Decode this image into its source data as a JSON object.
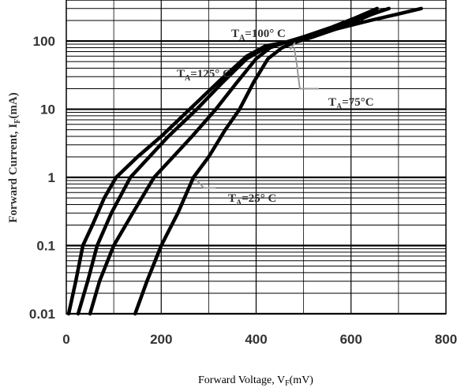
{
  "chart_data": {
    "type": "line",
    "title": "",
    "xlabel": {
      "main": "Forward Voltage, V",
      "sub": "F",
      "unit": "(mV)"
    },
    "ylabel": {
      "main": "Forward Current, I",
      "sub": "F",
      "unit": "(mA)"
    },
    "xlim": [
      0,
      800
    ],
    "ylim": [
      0.01,
      400
    ],
    "yscale": "log",
    "grid": true,
    "x_ticks": [
      0,
      200,
      400,
      600,
      800
    ],
    "x_tick_labels": [
      "0",
      "200",
      "400",
      "600",
      "800"
    ],
    "y_ticks": [
      0.01,
      0.1,
      1,
      10,
      100
    ],
    "y_tick_labels": [
      "0.01",
      "0.1",
      "1",
      "10",
      "100"
    ],
    "series": [
      {
        "points": [
          [
            5,
            0.01
          ],
          [
            20,
            0.03
          ],
          [
            35,
            0.1
          ],
          [
            55,
            0.2
          ],
          [
            80,
            0.5
          ],
          [
            105,
            1
          ],
          [
            150,
            2
          ],
          [
            200,
            4
          ],
          [
            260,
            10
          ],
          [
            320,
            25
          ],
          [
            380,
            60
          ],
          [
            420,
            85
          ],
          [
            460,
            95
          ],
          [
            500,
            115
          ],
          [
            560,
            160
          ],
          [
            610,
            220
          ],
          [
            655,
            300
          ]
        ]
      },
      {
        "points": [
          [
            25,
            0.01
          ],
          [
            45,
            0.03
          ],
          [
            65,
            0.1
          ],
          [
            95,
            0.3
          ],
          [
            135,
            1
          ],
          [
            175,
            2
          ],
          [
            215,
            4
          ],
          [
            275,
            10
          ],
          [
            330,
            25
          ],
          [
            380,
            55
          ],
          [
            420,
            80
          ],
          [
            460,
            95
          ],
          [
            500,
            115
          ],
          [
            560,
            155
          ],
          [
            630,
            230
          ],
          [
            680,
            300
          ]
        ]
      },
      {
        "points": [
          [
            50,
            0.01
          ],
          [
            70,
            0.03
          ],
          [
            100,
            0.1
          ],
          [
            140,
            0.3
          ],
          [
            185,
            1
          ],
          [
            225,
            2
          ],
          [
            265,
            4
          ],
          [
            315,
            10
          ],
          [
            360,
            25
          ],
          [
            400,
            55
          ],
          [
            430,
            80
          ],
          [
            460,
            95
          ],
          [
            500,
            110
          ],
          [
            560,
            145
          ],
          [
            640,
            200
          ],
          [
            700,
            250
          ],
          [
            748,
            300
          ]
        ]
      },
      {
        "points": [
          [
            145,
            0.01
          ],
          [
            170,
            0.03
          ],
          [
            200,
            0.1
          ],
          [
            235,
            0.3
          ],
          [
            268,
            1
          ],
          [
            300,
            2
          ],
          [
            335,
            5
          ],
          [
            365,
            10
          ],
          [
            395,
            25
          ],
          [
            425,
            55
          ],
          [
            455,
            80
          ],
          [
            480,
            95
          ],
          [
            520,
            115
          ],
          [
            580,
            160
          ],
          [
            640,
            240
          ],
          [
            670,
            290
          ]
        ]
      }
    ],
    "annotations": [
      {
        "text": "T",
        "sub": "A",
        "rest": "=100° C"
      },
      {
        "text": "T",
        "sub": "A",
        "rest": "=125° C"
      },
      {
        "text": "T",
        "sub": "A",
        "rest": "=75°C"
      },
      {
        "text": "T",
        "sub": "A",
        "rest": "=25° C"
      }
    ]
  }
}
